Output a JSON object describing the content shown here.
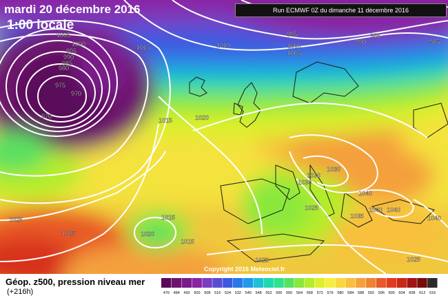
{
  "header": {
    "date": "mardi 20 décembre 2016",
    "time": "1:00 locale",
    "run": "Run ECMWF 0Z du dimanche 11 décembre 2016"
  },
  "copyright": "Copyright 2016 Meteociel.fr",
  "legend": {
    "title": "Géop. z500, pression niveau mer",
    "lead": "(+216h)",
    "ticks": [
      "476",
      "484",
      "492",
      "500",
      "508",
      "516",
      "524",
      "532",
      "540",
      "548",
      "552",
      "556",
      "560",
      "564",
      "568",
      "572",
      "576",
      "580",
      "584",
      "588",
      "592",
      "596",
      "600",
      "604",
      "608",
      "612",
      "616"
    ],
    "colors": [
      "#5a0a5a",
      "#6e146e",
      "#7a1a8a",
      "#8a24a0",
      "#7a3cc0",
      "#5a4cd0",
      "#3c5ae0",
      "#2878e8",
      "#1e9ae8",
      "#1ec0d8",
      "#1ed8b0",
      "#2ee090",
      "#5ae060",
      "#8ae83c",
      "#b4ec2c",
      "#dcf02c",
      "#f4f03c",
      "#f8d83c",
      "#f8c03c",
      "#f4a03c",
      "#f08232",
      "#e85a28",
      "#e03c1e",
      "#c82814",
      "#a01414",
      "#780a0a",
      "#2a2a2a"
    ]
  },
  "isobars": [
    {
      "label": "1005"
    },
    {
      "label": "1000"
    },
    {
      "label": "995"
    },
    {
      "label": "990"
    },
    {
      "label": "985"
    },
    {
      "label": "980"
    },
    {
      "label": "975"
    },
    {
      "label": "970"
    },
    {
      "label": "970"
    },
    {
      "label": "1015"
    },
    {
      "label": "1010"
    },
    {
      "label": "995"
    },
    {
      "label": "1000"
    },
    {
      "label": "1005"
    },
    {
      "label": "990"
    },
    {
      "label": "985"
    },
    {
      "label": "985"
    },
    {
      "label": "1020"
    },
    {
      "label": "1015"
    },
    {
      "label": "1030"
    },
    {
      "label": "1030"
    },
    {
      "label": "1030"
    },
    {
      "label": "1025"
    },
    {
      "label": "1025"
    },
    {
      "label": "1025"
    },
    {
      "label": "1015"
    },
    {
      "label": "1020"
    },
    {
      "label": "1015"
    },
    {
      "label": "1025"
    },
    {
      "label": "1040"
    },
    {
      "label": "1040"
    },
    {
      "label": "1040"
    },
    {
      "label": "1035"
    },
    {
      "label": "1040"
    },
    {
      "label": "1025"
    }
  ]
}
